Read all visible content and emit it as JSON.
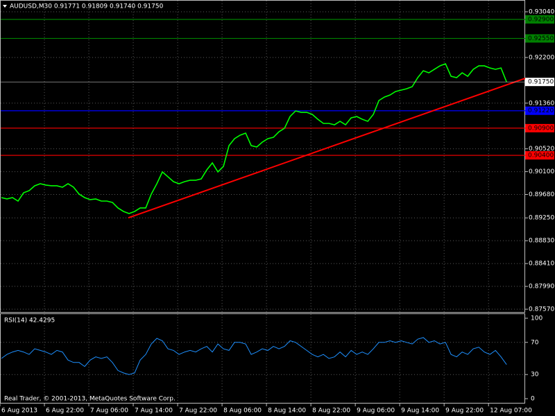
{
  "chart_data": [
    {
      "type": "line",
      "title": "AUDUSD,M30  0.91771 0.91809 0.91740 0.91750",
      "color": "#00ff00",
      "grid": true,
      "values": [
        0.89623,
        0.89598,
        0.89623,
        0.89559,
        0.89712,
        0.89751,
        0.8984,
        0.89878,
        0.89853,
        0.8984,
        0.8984,
        0.89814,
        0.89878,
        0.89814,
        0.89687,
        0.89623,
        0.89585,
        0.89598,
        0.89559,
        0.89559,
        0.89534,
        0.89432,
        0.89368,
        0.8933,
        0.89368,
        0.89432,
        0.89432,
        0.89687,
        0.89878,
        0.90095,
        0.90006,
        0.89916,
        0.89878,
        0.89916,
        0.89942,
        0.89942,
        0.89967,
        0.90133,
        0.90261,
        0.90095,
        0.90197,
        0.90579,
        0.90707,
        0.90771,
        0.90809,
        0.90579,
        0.90554,
        0.90643,
        0.90707,
        0.90732,
        0.90834,
        0.90898,
        0.91115,
        0.91217,
        0.91191,
        0.91191,
        0.91153,
        0.91064,
        0.90987,
        0.90987,
        0.90962,
        0.91026,
        0.90962,
        0.91089,
        0.91115,
        0.91064,
        0.91026,
        0.91153,
        0.91408,
        0.91472,
        0.9151,
        0.91574,
        0.91599,
        0.91625,
        0.91663,
        0.91829,
        0.91956,
        0.91918,
        0.91982,
        0.92046,
        0.92084,
        0.91854,
        0.91829,
        0.91918,
        0.91854,
        0.91982,
        0.92046,
        0.92046,
        0.92007,
        0.91982,
        0.92007,
        0.9175
      ],
      "xlim": [
        0,
        94.6
      ],
      "xticks": [
        {
          "value": 0,
          "label": "6 Aug 2013"
        },
        {
          "value": 8,
          "label": "6 Aug 22:00"
        },
        {
          "value": 16,
          "label": "7 Aug 06:00"
        },
        {
          "value": 24,
          "label": "7 Aug 14:00"
        },
        {
          "value": 32,
          "label": "7 Aug 22:00"
        },
        {
          "value": 40,
          "label": "8 Aug 06:00"
        },
        {
          "value": 48,
          "label": "8 Aug 14:00"
        },
        {
          "value": 56,
          "label": "8 Aug 22:00"
        },
        {
          "value": 64,
          "label": "9 Aug 06:00"
        },
        {
          "value": 72,
          "label": "9 Aug 14:00"
        },
        {
          "value": 80,
          "label": "9 Aug 22:00"
        },
        {
          "value": 88,
          "label": "12 Aug 07:00"
        }
      ],
      "ylim": [
        0.8757,
        0.9304
      ],
      "yticks": [
        {
          "value": 0.9304,
          "label": "0.93040"
        },
        {
          "value": 0.922,
          "label": "0.92200"
        },
        {
          "value": 0.9136,
          "label": "0.91360"
        },
        {
          "value": 0.9052,
          "label": "0.90520"
        },
        {
          "value": 0.901,
          "label": "0.90100"
        },
        {
          "value": 0.8968,
          "label": "0.89680"
        },
        {
          "value": 0.8925,
          "label": "0.89250"
        },
        {
          "value": 0.8883,
          "label": "0.88830"
        },
        {
          "value": 0.8841,
          "label": "0.88410"
        },
        {
          "value": 0.8799,
          "label": "0.87990"
        },
        {
          "value": 0.8757,
          "label": "0.87570"
        }
      ],
      "levels": [
        {
          "value": 0.929,
          "label": "0.92900",
          "color": "#008000"
        },
        {
          "value": 0.9255,
          "label": "0.92550",
          "color": "#008000"
        },
        {
          "value": 0.9122,
          "label": "0.91220",
          "color": "#0000ff"
        },
        {
          "value": 0.909,
          "label": "0.90900",
          "color": "#ff0000"
        },
        {
          "value": 0.904,
          "label": "0.90400",
          "color": "#ff0000"
        }
      ],
      "current_price": {
        "value": 0.9175,
        "label": "0.91750"
      },
      "trendline": {
        "color": "#ff0000",
        "x": [
          23.1,
          94.6
        ],
        "y": [
          0.8925,
          0.91816
        ]
      },
      "footer": "Real Trader, © 2001-2013, MetaQuotes Software Corp."
    },
    {
      "type": "line",
      "title": "RSI(14) 42.4295",
      "color": "#1e90ff",
      "values": [
        50,
        55,
        58,
        60,
        58,
        55,
        62,
        60,
        58,
        55,
        60,
        58,
        48,
        45,
        45,
        40,
        48,
        52,
        50,
        52,
        45,
        35,
        32,
        30,
        32,
        48,
        55,
        68,
        75,
        72,
        62,
        60,
        55,
        58,
        60,
        58,
        62,
        65,
        58,
        68,
        62,
        60,
        70,
        70,
        68,
        55,
        58,
        62,
        60,
        65,
        62,
        65,
        72,
        70,
        65,
        60,
        55,
        52,
        55,
        50,
        52,
        58,
        52,
        60,
        55,
        58,
        55,
        62,
        70,
        70,
        72,
        70,
        72,
        70,
        68,
        74,
        76,
        70,
        72,
        68,
        70,
        55,
        52,
        58,
        55,
        62,
        64,
        58,
        55,
        60,
        52,
        42.4295
      ],
      "ylim": [
        0,
        100
      ],
      "yticks": [
        100,
        70,
        30,
        0
      ]
    }
  ]
}
